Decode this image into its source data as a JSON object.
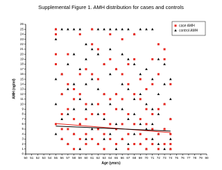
{
  "chart_data": {
    "type": "scatter",
    "title": "Supplemental Figure 1.  AMH distribution for cases and controls",
    "xlabel": "Age (years)",
    "ylabel": "AMH (ng/ml)",
    "xlim": [
      50,
      80
    ],
    "ylim": [
      0,
      26
    ],
    "xticks": [
      50,
      51,
      52,
      53,
      54,
      55,
      56,
      57,
      58,
      59,
      60,
      61,
      62,
      63,
      64,
      65,
      66,
      67,
      68,
      69,
      70,
      71,
      72,
      73,
      74,
      75,
      76,
      77,
      78,
      79,
      80
    ],
    "yticks": [
      0,
      1,
      2,
      3,
      4,
      5,
      6,
      7,
      8,
      9,
      10,
      11,
      12,
      13,
      14,
      15,
      16,
      17,
      18,
      19,
      20,
      21,
      22,
      23,
      24,
      25,
      26
    ],
    "legend": "top-right",
    "series": [
      {
        "name": "case AMH",
        "color": "#e8261e",
        "marker": "square",
        "x": [
          55,
          55,
          55,
          55,
          55,
          56,
          56,
          56,
          56,
          56,
          57,
          57,
          57,
          57,
          57,
          58,
          58,
          58,
          58,
          58,
          59,
          59,
          59,
          59,
          59,
          60,
          60,
          60,
          60,
          60,
          61,
          61,
          61,
          61,
          61,
          62,
          62,
          62,
          62,
          62,
          63,
          63,
          63,
          63,
          63,
          64,
          64,
          64,
          64,
          64,
          65,
          65,
          65,
          65,
          65,
          66,
          66,
          66,
          66,
          66,
          67,
          67,
          67,
          67,
          67,
          68,
          68,
          68,
          68,
          68,
          69,
          69,
          69,
          69,
          69,
          70,
          70,
          70,
          70,
          70,
          71,
          71,
          71,
          71,
          71,
          72,
          72,
          72,
          72,
          72,
          73,
          73,
          73,
          73,
          73,
          74,
          74,
          74,
          74,
          74
        ],
        "values": [
          25,
          24,
          20,
          18,
          6,
          16,
          12,
          8,
          5,
          3,
          20,
          14,
          9,
          5,
          2,
          13,
          11,
          7,
          4,
          1,
          24,
          16,
          12,
          6,
          3,
          17,
          10,
          7,
          4,
          2,
          25,
          22,
          16,
          8,
          3,
          21,
          15,
          10,
          5,
          2,
          18,
          12,
          8,
          4,
          1,
          24,
          19,
          11,
          6,
          3,
          17,
          12,
          9,
          5,
          2,
          23,
          16,
          11,
          6,
          3,
          18,
          14,
          8,
          4,
          1,
          24,
          19,
          12,
          6,
          2,
          15,
          11,
          7,
          4,
          2,
          13,
          9,
          6,
          3,
          1,
          19,
          14,
          8,
          5,
          2,
          22,
          16,
          9,
          4,
          1,
          21,
          19,
          10,
          5,
          2,
          14,
          7,
          4,
          2,
          1
        ]
      },
      {
        "name": "control AMH",
        "color": "#000000",
        "marker": "triangle",
        "x": [
          55,
          55,
          55,
          55,
          55,
          56,
          56,
          56,
          56,
          56,
          57,
          57,
          57,
          57,
          57,
          58,
          58,
          58,
          58,
          58,
          59,
          59,
          59,
          59,
          59,
          60,
          60,
          60,
          60,
          60,
          61,
          61,
          61,
          61,
          61,
          62,
          62,
          62,
          62,
          62,
          63,
          63,
          63,
          63,
          63,
          64,
          64,
          64,
          64,
          64,
          65,
          65,
          65,
          65,
          65,
          66,
          66,
          66,
          66,
          66,
          67,
          67,
          67,
          67,
          67,
          68,
          68,
          68,
          68,
          68,
          69,
          69,
          69,
          69,
          69,
          70,
          70,
          70,
          70,
          70,
          71,
          71,
          71,
          71,
          71,
          72,
          72,
          72,
          72,
          72,
          73,
          73,
          73,
          73,
          73,
          74,
          74,
          74,
          74,
          74
        ],
        "values": [
          25,
          23,
          15,
          10,
          4,
          25,
          16,
          12,
          7,
          3,
          25,
          18,
          13,
          8,
          2,
          25,
          20,
          14,
          9,
          4,
          25,
          17,
          11,
          6,
          1,
          22,
          19,
          14,
          9,
          3,
          25,
          21,
          15,
          10,
          5,
          25,
          20,
          13,
          8,
          2,
          25,
          18,
          12,
          7,
          3,
          25,
          21,
          16,
          10,
          4,
          25,
          17,
          12,
          6,
          1,
          25,
          20,
          14,
          9,
          3,
          25,
          19,
          13,
          7,
          2,
          24,
          18,
          11,
          8,
          4,
          25,
          16,
          12,
          6,
          2,
          25,
          17,
          10,
          5,
          1,
          25,
          15,
          9,
          6,
          3,
          19,
          12,
          8,
          4,
          2,
          18,
          14,
          10,
          5,
          1,
          15,
          11,
          7,
          3,
          1
        ]
      }
    ],
    "trend_lines": [
      {
        "color": "#e8261e",
        "x": [
          55,
          74
        ],
        "values": [
          6.1,
          4.3
        ]
      },
      {
        "color": "#000000",
        "x": [
          55,
          74
        ],
        "values": [
          5.6,
          4.6
        ]
      }
    ]
  }
}
